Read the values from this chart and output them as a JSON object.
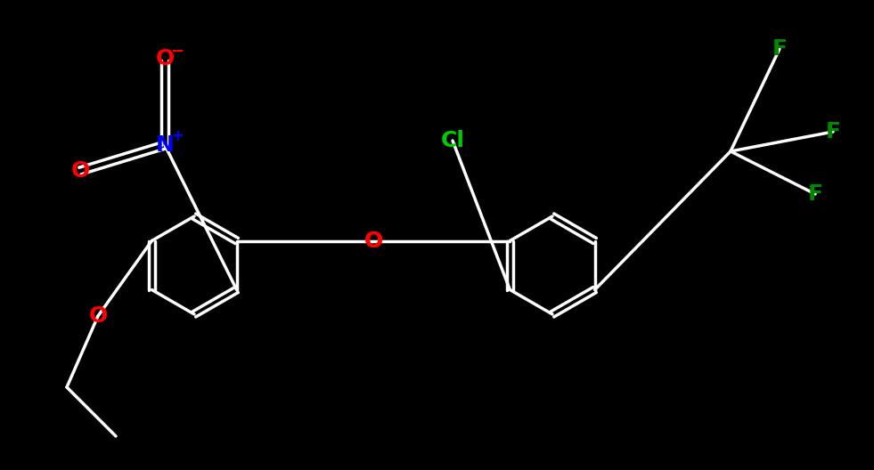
{
  "background_color": "#000000",
  "bond_color": "#ffffff",
  "bond_width": 2.5,
  "atom_colors": {
    "O": "#ff0000",
    "N": "#0000ff",
    "Cl": "#00cc00",
    "F": "#008800",
    "C": "#ffffff"
  },
  "font_size_main": 18,
  "font_size_charge": 12,
  "figsize": [
    9.81,
    5.28
  ],
  "dpi": 100
}
